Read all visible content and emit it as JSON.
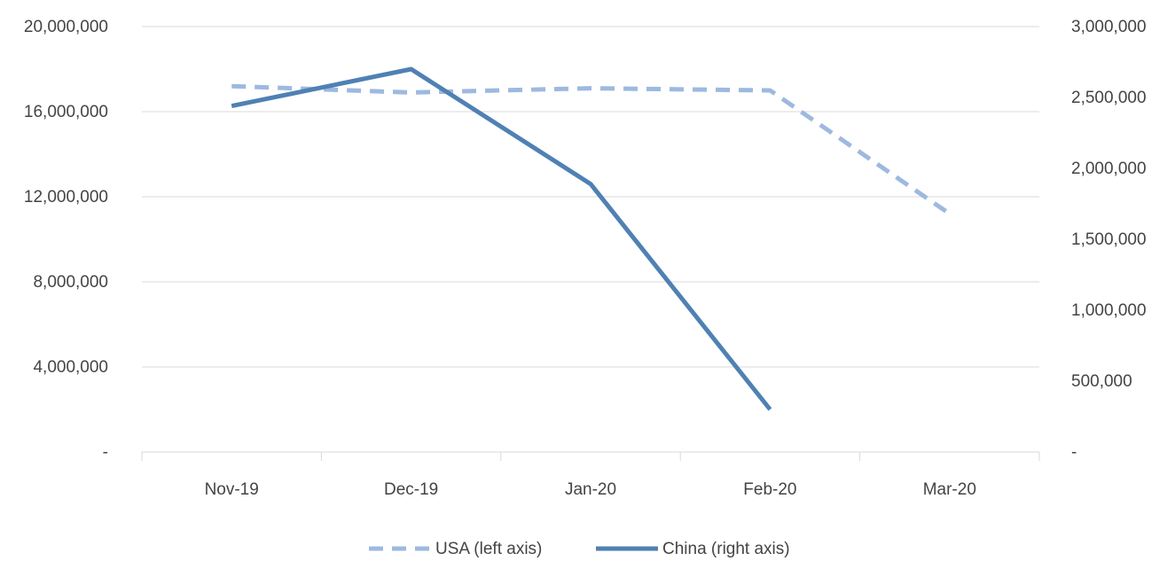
{
  "chart_data": {
    "type": "line",
    "categories": [
      "Nov-19",
      "Dec-19",
      "Jan-20",
      "Feb-20",
      "Mar-20"
    ],
    "left_axis": {
      "range": [
        0,
        20000000
      ],
      "ticks": [
        0,
        4000000,
        8000000,
        12000000,
        16000000,
        20000000
      ],
      "tick_labels": [
        "-",
        "4,000,000",
        "8,000,000",
        "12,000,000",
        "16,000,000",
        "20,000,000"
      ]
    },
    "right_axis": {
      "range": [
        0,
        3000000
      ],
      "ticks": [
        0,
        500000,
        1000000,
        1500000,
        2000000,
        2500000,
        3000000
      ],
      "tick_labels": [
        "-",
        "500,000",
        "1,000,000",
        "1,500,000",
        "2,000,000",
        "2,500,000",
        "3,000,000"
      ]
    },
    "series": [
      {
        "name": "USA (left axis)",
        "axis": "left",
        "style": "dashed",
        "color": "#9DB9DF",
        "values": [
          17200000,
          16900000,
          17100000,
          17000000,
          11200000
        ]
      },
      {
        "name": "China (right axis)",
        "axis": "right",
        "style": "solid",
        "color": "#4F81B4",
        "values": [
          2440000,
          2700000,
          1890000,
          300000,
          null
        ]
      }
    ],
    "grid": "horizontal",
    "legend_position": "bottom"
  }
}
